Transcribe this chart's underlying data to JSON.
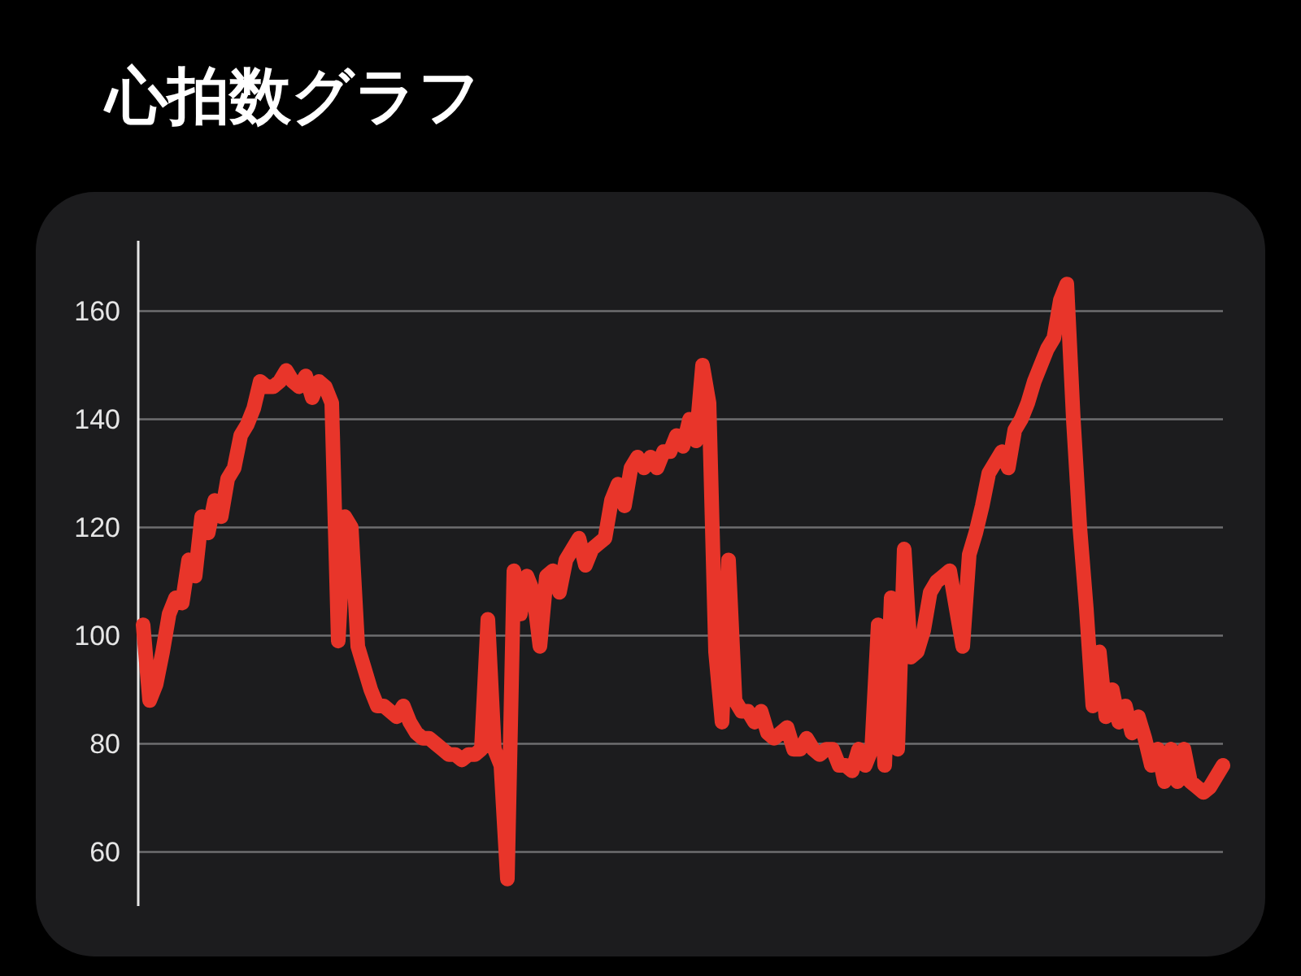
{
  "chart_data": {
    "type": "line",
    "title": "心拍数グラフ",
    "categories": [
      null,
      null,
      null,
      null,
      null,
      null,
      null,
      null,
      null,
      null,
      null,
      null,
      null,
      null,
      null,
      null,
      null,
      null,
      null,
      null,
      null,
      null,
      null,
      null,
      null,
      null,
      null,
      null,
      null,
      null,
      null,
      null,
      null,
      null,
      null,
      null,
      null,
      null,
      null,
      null,
      null,
      null,
      null,
      null,
      null,
      null,
      null,
      null,
      null,
      null,
      null,
      null,
      null,
      null,
      null,
      null,
      null,
      null,
      null,
      null,
      null,
      null,
      null,
      null,
      null,
      null,
      null,
      null,
      null,
      null,
      null,
      null,
      null,
      null,
      null,
      null,
      null,
      null,
      null,
      null,
      null,
      null,
      null,
      null,
      null,
      null,
      null,
      null,
      null,
      null,
      null,
      null,
      null,
      null,
      null,
      null,
      null,
      null,
      null,
      null,
      null,
      null,
      null,
      null,
      null,
      null,
      null,
      null,
      null,
      null,
      null,
      null,
      null,
      null,
      null,
      null,
      null,
      null,
      null,
      null,
      null,
      null,
      null,
      null,
      null,
      null,
      null,
      null,
      null,
      null,
      null,
      null,
      null,
      null,
      null,
      null,
      null,
      null,
      null,
      null,
      null,
      null,
      null,
      null,
      null,
      null,
      null,
      null,
      null,
      null,
      null,
      null,
      null,
      null,
      null,
      null,
      null,
      null,
      null,
      null,
      null,
      null,
      null,
      null,
      null,
      null,
      null
    ],
    "series": [
      {
        "color": "#e8352a",
        "values": [
          102,
          88,
          91,
          97,
          104,
          107,
          106,
          114,
          111,
          122,
          119,
          125,
          122,
          129,
          131,
          137,
          139,
          142,
          147,
          146,
          146,
          147,
          149,
          147,
          146,
          148,
          144,
          147,
          146,
          143,
          99,
          122,
          120,
          98,
          94,
          90,
          87,
          87,
          86,
          85,
          87,
          84,
          82,
          81,
          81,
          80,
          79,
          78,
          78,
          77,
          78,
          78,
          79,
          103,
          79,
          76,
          55,
          112,
          104,
          111,
          108,
          98,
          111,
          112,
          108,
          114,
          116,
          118,
          113,
          116,
          117,
          118,
          125,
          128,
          124,
          131,
          133,
          131,
          133,
          131,
          134,
          134,
          137,
          135,
          140,
          136,
          150,
          143,
          97,
          84,
          114,
          88,
          86,
          86,
          84,
          86,
          82,
          81,
          82,
          83,
          79,
          79,
          81,
          79,
          78,
          79,
          79,
          76,
          76,
          75,
          79,
          76,
          79,
          102,
          76,
          107,
          79,
          116,
          96,
          97,
          101,
          108,
          110,
          111,
          112,
          105,
          98,
          115,
          119,
          124,
          130,
          132,
          134,
          131,
          138,
          140,
          143,
          147,
          150,
          153,
          155,
          162,
          165,
          140,
          120,
          105,
          87,
          97,
          85,
          90,
          84,
          87,
          82,
          85,
          81,
          76,
          79,
          73,
          79,
          73,
          79,
          73,
          72,
          71,
          72,
          74,
          76
        ]
      }
    ],
    "ylim": [
      50,
      173
    ],
    "yticks": [
      60,
      80,
      100,
      120,
      140,
      160
    ],
    "grid": "y",
    "line_style": "solid",
    "marker": "none"
  }
}
